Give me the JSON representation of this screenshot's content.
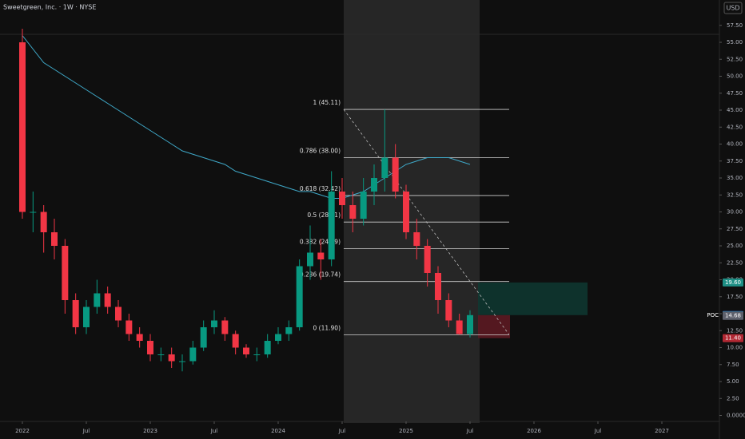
{
  "header": {
    "title": "Sweetgreen, Inc. · 1W · NYSE",
    "currency": "USD"
  },
  "chart_data": {
    "type": "candlestick",
    "x": [
      "2022-01",
      "2022-02",
      "2022-03",
      "2022-04",
      "2022-05",
      "2022-06",
      "2022-07",
      "2022-08",
      "2022-09",
      "2022-10",
      "2022-11",
      "2022-12",
      "2023-01",
      "2023-02",
      "2023-03",
      "2023-04",
      "2023-05",
      "2023-06",
      "2023-07",
      "2023-08",
      "2023-09",
      "2023-10",
      "2023-11",
      "2023-12",
      "2024-01",
      "2024-02",
      "2024-03",
      "2024-04",
      "2024-05",
      "2024-06",
      "2024-07",
      "2024-08",
      "2024-09",
      "2024-10",
      "2024-11",
      "2024-12",
      "2025-01",
      "2025-02",
      "2025-03",
      "2025-04",
      "2025-05",
      "2025-06",
      "2025-07"
    ],
    "open": [
      55,
      30,
      30,
      27,
      25,
      17,
      13,
      16,
      18,
      16,
      14,
      12,
      11,
      9,
      9,
      8,
      8,
      10,
      13,
      14,
      12,
      10,
      9,
      9,
      11,
      12,
      13,
      22,
      24,
      23,
      33,
      31,
      29,
      33,
      35,
      38,
      33,
      27,
      25,
      21,
      17,
      14,
      12
    ],
    "high": [
      57,
      33,
      31,
      29,
      26,
      18,
      17,
      20,
      19,
      17,
      15,
      13,
      12,
      10,
      10,
      9,
      11,
      14,
      15.5,
      14.5,
      12.5,
      10.5,
      10,
      12,
      13,
      14,
      23,
      28,
      26,
      36,
      35,
      33,
      35,
      37,
      45.11,
      40,
      34,
      29,
      26,
      22,
      18,
      15,
      15.5
    ],
    "low": [
      29,
      27,
      24,
      23,
      15,
      12,
      12,
      15,
      15,
      13,
      11,
      10,
      8,
      8,
      7,
      6.5,
      7.5,
      9.5,
      12,
      11,
      9,
      8.5,
      8,
      8.5,
      10.5,
      11,
      12.5,
      20,
      20,
      22,
      29,
      27,
      28,
      31,
      33,
      32,
      26,
      23,
      19,
      15,
      13,
      11.9,
      11.5
    ],
    "close": [
      30,
      30,
      27,
      25,
      17,
      13,
      16,
      18,
      16,
      14,
      12,
      11,
      9,
      9,
      8,
      8,
      10,
      13,
      14,
      12,
      10,
      9,
      9,
      11,
      12,
      13,
      22,
      24,
      23,
      33,
      31,
      29,
      33,
      35,
      38,
      33,
      27,
      25,
      21,
      17,
      14,
      12,
      14.79
    ],
    "ma": [
      56,
      54,
      52,
      51,
      50,
      49,
      48,
      47,
      46,
      45,
      44,
      43,
      42,
      41,
      40,
      39,
      38.5,
      38,
      37.5,
      37,
      36,
      35.5,
      35,
      34.5,
      34,
      33.5,
      33,
      33,
      32.5,
      32,
      32,
      32.5,
      33,
      34,
      35,
      36,
      37,
      37.5,
      38,
      38,
      38,
      37.5,
      37
    ],
    "up_color": "#089981",
    "down_color": "#f23645",
    "ma_color": "#3fa9c9",
    "ylim": [
      0,
      60.5
    ],
    "yticks": [
      {
        "value": 57.5,
        "label": "57.50"
      },
      {
        "value": 55,
        "label": "55.00"
      },
      {
        "value": 52.5,
        "label": "52.50"
      },
      {
        "value": 50,
        "label": "50.00"
      },
      {
        "value": 47.5,
        "label": "47.50"
      },
      {
        "value": 45,
        "label": "45.00"
      },
      {
        "value": 42.5,
        "label": "42.50"
      },
      {
        "value": 40,
        "label": "40.00"
      },
      {
        "value": 37.5,
        "label": "37.50"
      },
      {
        "value": 35,
        "label": "35.00"
      },
      {
        "value": 32.5,
        "label": "32.50"
      },
      {
        "value": 30,
        "label": "30.00"
      },
      {
        "value": 27.5,
        "label": "27.50"
      },
      {
        "value": 25,
        "label": "25.00"
      },
      {
        "value": 22.5,
        "label": "22.50"
      },
      {
        "value": 20,
        "label": "20.00"
      },
      {
        "value": 17.5,
        "label": "17.50"
      },
      {
        "value": 15,
        "label": "15.00"
      },
      {
        "value": 12.5,
        "label": "12.50"
      },
      {
        "value": 10,
        "label": "10.00"
      },
      {
        "value": 7.5,
        "label": "7.50"
      },
      {
        "value": 5,
        "label": "5.00"
      },
      {
        "value": 2.5,
        "label": "2.50"
      },
      {
        "value": 0,
        "label": "0.0000"
      }
    ],
    "xticks": [
      {
        "value": "2022-01",
        "label": "2022"
      },
      {
        "value": "2022-07",
        "label": "Jul"
      },
      {
        "value": "2023-01",
        "label": "2023"
      },
      {
        "value": "2023-07",
        "label": "Jul"
      },
      {
        "value": "2024-01",
        "label": "2024"
      },
      {
        "value": "2024-07",
        "label": "Jul"
      },
      {
        "value": "2025-01",
        "label": "2025"
      },
      {
        "value": "2025-07",
        "label": "Jul"
      },
      {
        "value": "2026-01",
        "label": "2026"
      },
      {
        "value": "2026-07",
        "label": "Jul"
      },
      {
        "value": "2027-01",
        "label": "2027"
      }
    ],
    "fib_levels": [
      {
        "value": 45.11,
        "label": "1 (45.11)"
      },
      {
        "value": 38.0,
        "label": "0.786 (38.00)"
      },
      {
        "value": 32.42,
        "label": "0.618 (32.42)"
      },
      {
        "value": 28.51,
        "label": "0.5 (28.51)"
      },
      {
        "value": 24.59,
        "label": "0.382 (24.59)"
      },
      {
        "value": 19.74,
        "label": "0.236 (19.74)"
      },
      {
        "value": 11.9,
        "label": "0 (11.90)"
      }
    ],
    "price_badges": [
      {
        "value": 19.6,
        "label": "19.60",
        "color": "#1e8f85"
      },
      {
        "value": 14.79,
        "label": "14.79",
        "color": "#2962ff"
      },
      {
        "value": 14.78,
        "label": "14.78",
        "color": "#3a6f8f"
      },
      {
        "value": 14.68,
        "label": "14.68",
        "color": "#5d606b"
      },
      {
        "value": 11.4,
        "label": "11.40",
        "color": "#b22833"
      }
    ],
    "poc_label": "POC"
  }
}
